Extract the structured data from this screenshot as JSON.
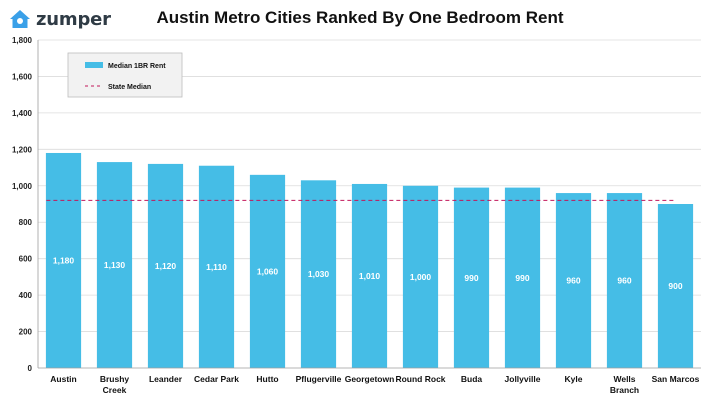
{
  "brand": {
    "name": "zumper",
    "color": "#3aa0e8"
  },
  "chart_data": {
    "type": "bar",
    "title": "Austin Metro Cities Ranked By One Bedroom Rent",
    "categories": [
      "Austin",
      "Brushy Creek",
      "Leander",
      "Cedar Park",
      "Hutto",
      "Pflugerville",
      "Georgetown",
      "Round Rock",
      "Buda",
      "Jollyville",
      "Kyle",
      "Wells Branch",
      "San Marcos"
    ],
    "series": [
      {
        "name": "Median 1BR Rent",
        "values": [
          1180,
          1130,
          1120,
          1110,
          1060,
          1030,
          1010,
          1000,
          990,
          990,
          960,
          960,
          900
        ],
        "color": "#45bde6"
      }
    ],
    "data_labels": [
      "1,180",
      "1,130",
      "1,120",
      "1,110",
      "1,060",
      "1,030",
      "1,010",
      "1,000",
      "990",
      "990",
      "960",
      "960",
      "900"
    ],
    "reference_line": {
      "name": "State Median",
      "value": 920,
      "color": "#c2185b"
    },
    "yticks": [
      "0",
      "200",
      "400",
      "600",
      "800",
      "1,000",
      "1,200",
      "1,400",
      "1,600",
      "1,800"
    ],
    "ylim": [
      0,
      1800
    ],
    "grid": true,
    "legend": "top-left"
  }
}
